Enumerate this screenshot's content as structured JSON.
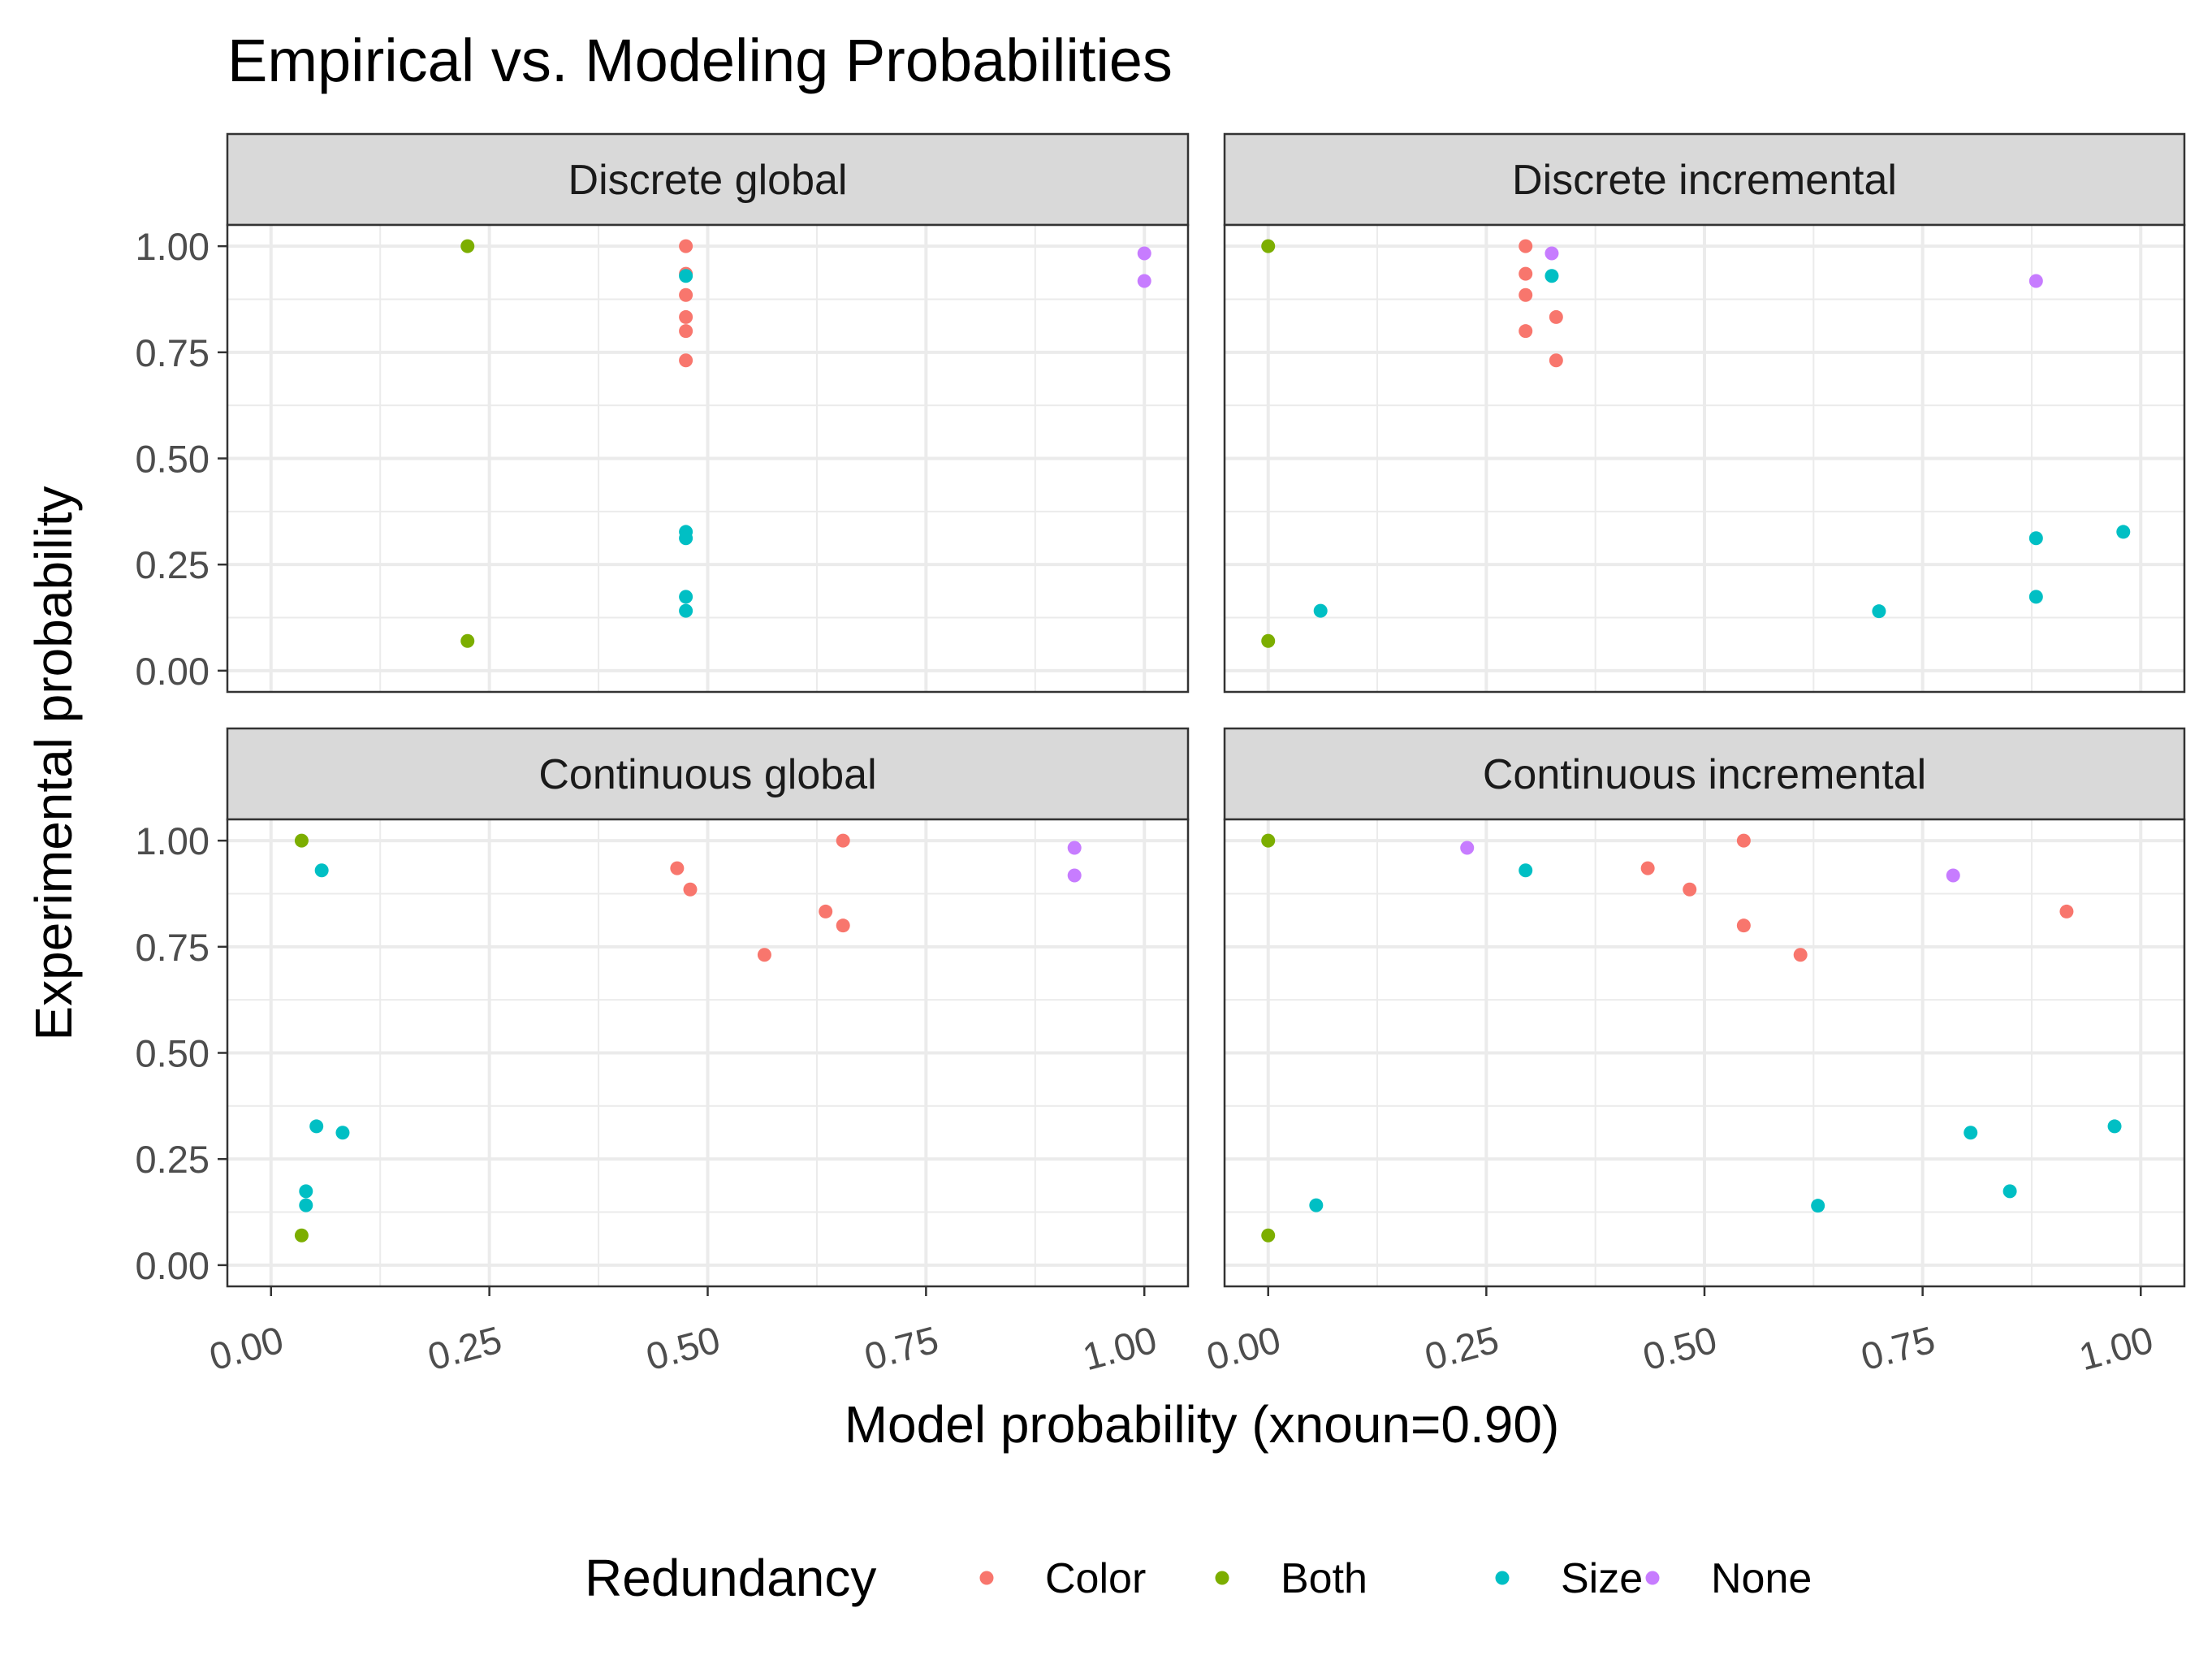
{
  "chart_data": {
    "type": "scatter",
    "title": "Empirical vs. Modeling Probabilities",
    "xlabel": "Model probability (xnoun=0.90)",
    "ylabel": "Experimental probability",
    "xlim": [
      -0.05,
      1.05
    ],
    "ylim": [
      -0.05,
      1.05
    ],
    "x_ticks": [
      "0.00",
      "0.25",
      "0.50",
      "0.75",
      "1.00"
    ],
    "y_ticks": [
      "0.00",
      "0.25",
      "0.50",
      "0.75",
      "1.00"
    ],
    "grid": true,
    "legend": {
      "title": "Redundancy",
      "position": "bottom",
      "entries": [
        {
          "name": "Color",
          "color": "#F8766D"
        },
        {
          "name": "Both",
          "color": "#7CAE00"
        },
        {
          "name": "Size",
          "color": "#00BFC4"
        },
        {
          "name": "None",
          "color": "#C77CFF"
        }
      ]
    },
    "panels": [
      {
        "label": "Discrete global",
        "series": [
          {
            "name": "Color",
            "points": [
              [
                0.475,
                1.0
              ],
              [
                0.475,
                0.935
              ],
              [
                0.475,
                0.885
              ],
              [
                0.475,
                0.833
              ],
              [
                0.475,
                0.8
              ],
              [
                0.475,
                0.731
              ]
            ]
          },
          {
            "name": "Both",
            "points": [
              [
                0.225,
                1.0
              ],
              [
                0.225,
                0.07
              ]
            ]
          },
          {
            "name": "Size",
            "points": [
              [
                0.475,
                0.93
              ],
              [
                0.475,
                0.327
              ],
              [
                0.475,
                0.312
              ],
              [
                0.475,
                0.174
              ],
              [
                0.475,
                0.141
              ]
            ]
          },
          {
            "name": "None",
            "points": [
              [
                1.0,
                0.983
              ],
              [
                1.0,
                0.918
              ]
            ]
          }
        ]
      },
      {
        "label": "Discrete incremental",
        "series": [
          {
            "name": "Color",
            "points": [
              [
                0.295,
                1.0
              ],
              [
                0.295,
                0.935
              ],
              [
                0.295,
                0.885
              ],
              [
                0.295,
                0.8
              ],
              [
                0.33,
                0.833
              ],
              [
                0.33,
                0.731
              ]
            ]
          },
          {
            "name": "Both",
            "points": [
              [
                0.0,
                1.0
              ],
              [
                0.0,
                0.07
              ]
            ]
          },
          {
            "name": "Size",
            "points": [
              [
                0.325,
                0.93
              ],
              [
                0.06,
                0.141
              ],
              [
                0.7,
                0.14
              ],
              [
                0.88,
                0.312
              ],
              [
                0.88,
                0.174
              ],
              [
                0.98,
                0.327
              ]
            ]
          },
          {
            "name": "None",
            "points": [
              [
                0.325,
                0.983
              ],
              [
                0.88,
                0.918
              ]
            ]
          }
        ]
      },
      {
        "label": "Continuous global",
        "series": [
          {
            "name": "Color",
            "points": [
              [
                0.465,
                0.935
              ],
              [
                0.48,
                0.885
              ],
              [
                0.655,
                1.0
              ],
              [
                0.635,
                0.833
              ],
              [
                0.655,
                0.8
              ],
              [
                0.565,
                0.731
              ]
            ]
          },
          {
            "name": "Both",
            "points": [
              [
                0.035,
                1.0
              ],
              [
                0.035,
                0.07
              ]
            ]
          },
          {
            "name": "Size",
            "points": [
              [
                0.058,
                0.93
              ],
              [
                0.052,
                0.327
              ],
              [
                0.082,
                0.312
              ],
              [
                0.04,
                0.174
              ],
              [
                0.04,
                0.141
              ]
            ]
          },
          {
            "name": "None",
            "points": [
              [
                0.92,
                0.983
              ],
              [
                0.92,
                0.918
              ]
            ]
          }
        ]
      },
      {
        "label": "Continuous incremental",
        "series": [
          {
            "name": "Color",
            "points": [
              [
                0.435,
                0.935
              ],
              [
                0.483,
                0.885
              ],
              [
                0.545,
                1.0
              ],
              [
                0.545,
                0.8
              ],
              [
                0.61,
                0.731
              ],
              [
                0.915,
                0.833
              ]
            ]
          },
          {
            "name": "Both",
            "points": [
              [
                0.0,
                1.0
              ],
              [
                0.0,
                0.07
              ]
            ]
          },
          {
            "name": "Size",
            "points": [
              [
                0.295,
                0.93
              ],
              [
                0.055,
                0.141
              ],
              [
                0.63,
                0.14
              ],
              [
                0.805,
                0.312
              ],
              [
                0.85,
                0.174
              ],
              [
                0.97,
                0.327
              ]
            ]
          },
          {
            "name": "None",
            "points": [
              [
                0.228,
                0.983
              ],
              [
                0.785,
                0.918
              ]
            ]
          }
        ]
      }
    ]
  }
}
